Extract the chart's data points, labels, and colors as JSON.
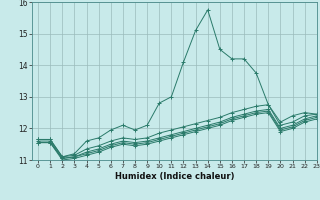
{
  "xlabel": "Humidex (Indice chaleur)",
  "xlim": [
    -0.5,
    23
  ],
  "ylim": [
    11.0,
    16.0
  ],
  "yticks": [
    11,
    12,
    13,
    14,
    15,
    16
  ],
  "xticks": [
    0,
    1,
    2,
    3,
    4,
    5,
    6,
    7,
    8,
    9,
    10,
    11,
    12,
    13,
    14,
    15,
    16,
    17,
    18,
    19,
    20,
    21,
    22,
    23
  ],
  "line_color": "#2a7a6a",
  "bg_color": "#c8eaea",
  "grid_color": "#9bbcbc",
  "curves": [
    {
      "x": [
        0,
        1,
        2,
        3,
        4,
        5,
        6,
        7,
        8,
        9,
        10,
        11,
        12,
        13,
        14,
        15,
        16,
        17,
        18,
        19,
        20,
        21,
        22,
        23
      ],
      "y": [
        11.65,
        11.65,
        11.1,
        11.2,
        11.6,
        11.7,
        11.95,
        12.1,
        11.95,
        12.1,
        12.8,
        13.0,
        14.1,
        15.1,
        15.75,
        14.5,
        14.2,
        14.2,
        13.75,
        12.75,
        12.2,
        12.4,
        12.5,
        12.45
      ]
    },
    {
      "x": [
        0,
        1,
        2,
        3,
        4,
        5,
        6,
        7,
        8,
        9,
        10,
        11,
        12,
        13,
        14,
        15,
        16,
        17,
        18,
        19,
        20,
        21,
        22,
        23
      ],
      "y": [
        11.65,
        11.65,
        11.1,
        11.15,
        11.35,
        11.45,
        11.6,
        11.7,
        11.65,
        11.7,
        11.85,
        11.95,
        12.05,
        12.15,
        12.25,
        12.35,
        12.5,
        12.6,
        12.7,
        12.75,
        12.1,
        12.2,
        12.4,
        12.45
      ]
    },
    {
      "x": [
        0,
        1,
        2,
        3,
        4,
        5,
        6,
        7,
        8,
        9,
        10,
        11,
        12,
        13,
        14,
        15,
        16,
        17,
        18,
        19,
        20,
        21,
        22,
        23
      ],
      "y": [
        11.6,
        11.6,
        11.05,
        11.1,
        11.25,
        11.35,
        11.5,
        11.6,
        11.55,
        11.6,
        11.7,
        11.8,
        11.9,
        12.0,
        12.1,
        12.2,
        12.35,
        12.45,
        12.55,
        12.6,
        12.0,
        12.1,
        12.3,
        12.4
      ]
    },
    {
      "x": [
        0,
        1,
        2,
        3,
        4,
        5,
        6,
        7,
        8,
        9,
        10,
        11,
        12,
        13,
        14,
        15,
        16,
        17,
        18,
        19,
        20,
        21,
        22,
        23
      ],
      "y": [
        11.55,
        11.55,
        11.05,
        11.1,
        11.2,
        11.3,
        11.45,
        11.55,
        11.5,
        11.55,
        11.65,
        11.75,
        11.85,
        11.95,
        12.05,
        12.15,
        12.3,
        12.4,
        12.5,
        12.55,
        11.95,
        12.05,
        12.25,
        12.35
      ]
    },
    {
      "x": [
        0,
        1,
        2,
        3,
        4,
        5,
        6,
        7,
        8,
        9,
        10,
        11,
        12,
        13,
        14,
        15,
        16,
        17,
        18,
        19,
        20,
        21,
        22,
        23
      ],
      "y": [
        11.55,
        11.55,
        11.0,
        11.05,
        11.15,
        11.25,
        11.4,
        11.5,
        11.45,
        11.5,
        11.6,
        11.7,
        11.8,
        11.9,
        12.0,
        12.1,
        12.25,
        12.35,
        12.45,
        12.5,
        11.9,
        12.0,
        12.2,
        12.3
      ]
    }
  ]
}
